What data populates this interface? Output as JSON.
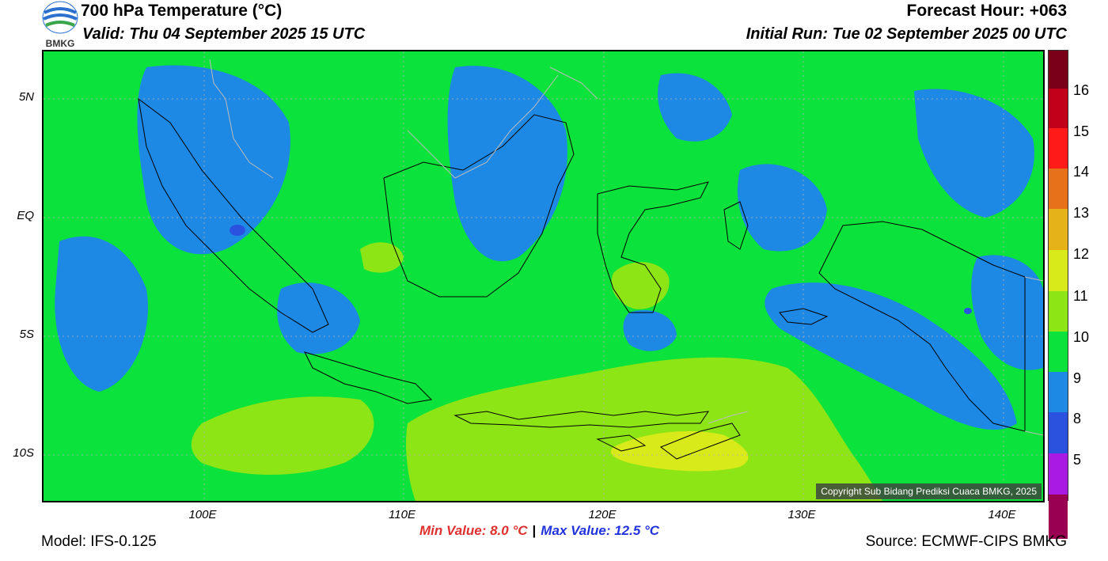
{
  "header": {
    "title": "700 hPa Temperature (°C)",
    "valid": "Valid: Thu 04 September 2025 15 UTC",
    "forecast_hour": "Forecast Hour: +063",
    "initial_run": "Initial Run: Tue 02 September 2025 00 UTC",
    "logo_text": "BMKG"
  },
  "map": {
    "copyright": "Copyright Sub Bidang Prediksi Cuaca BMKG, 2025",
    "lat_labels": [
      "5N",
      "EQ",
      "5S",
      "10S"
    ],
    "lon_labels": [
      "100E",
      "110E",
      "120E",
      "130E",
      "140E"
    ],
    "colors": {
      "c9": "#1e88e5",
      "c10": "#0be23b",
      "c11": "#8ee515",
      "c12": "#d8ea1a"
    }
  },
  "colorbar": {
    "labels": [
      "16",
      "15",
      "14",
      "13",
      "12",
      "11",
      "10",
      "9",
      "8",
      "5"
    ],
    "colors": [
      "#7a0019",
      "#c2001a",
      "#ff1a1a",
      "#e6711a",
      "#e6b21a",
      "#d8ea1a",
      "#8ee515",
      "#0be23b",
      "#1e88e5",
      "#2a52de",
      "#a91ae3",
      "#990052"
    ]
  },
  "footer": {
    "model": "Model: IFS-0.125",
    "min_value": "Min Value: 8.0 °C",
    "separator": "|",
    "max_value": "Max Value: 12.5 °C",
    "source": "Source: ECMWF-CIPS BMKG"
  }
}
